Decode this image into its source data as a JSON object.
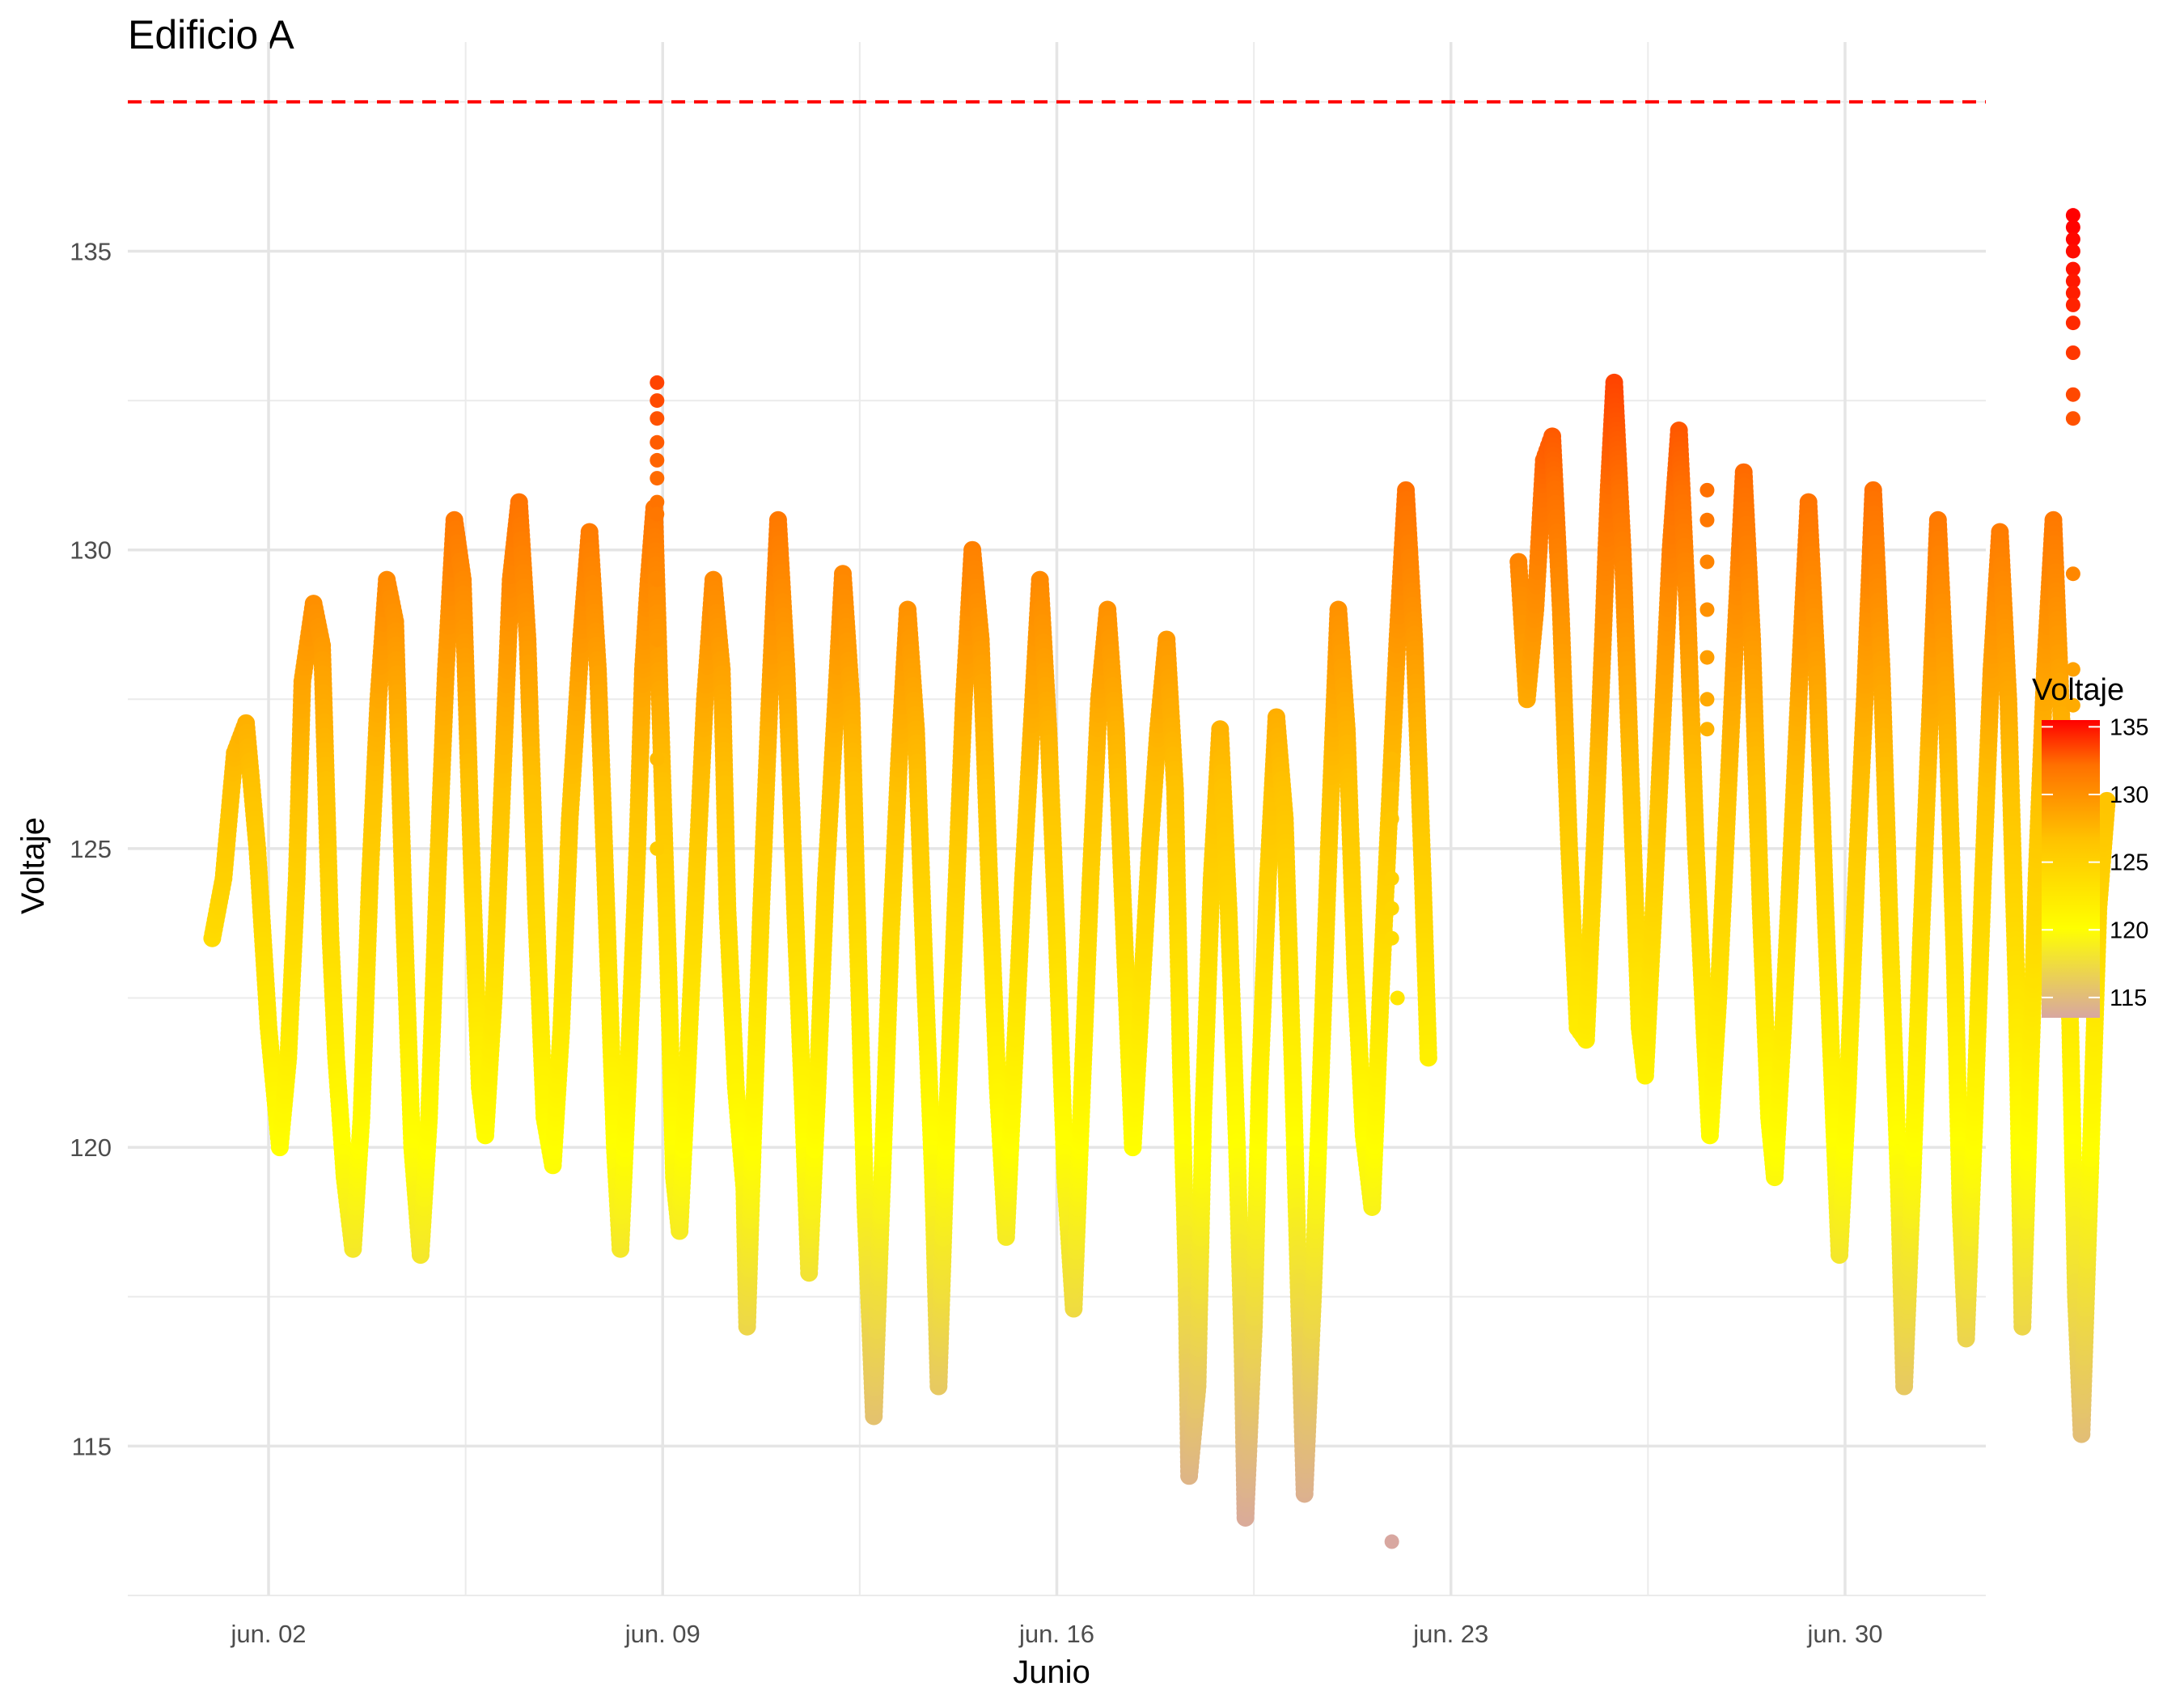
{
  "chart_data": {
    "type": "scatter",
    "title": "Edificio A",
    "xlabel": "Junio",
    "ylabel": "Voltaje",
    "x_ticks": [
      "jun. 02",
      "jun. 09",
      "jun. 16",
      "jun. 23",
      "jun. 30"
    ],
    "x_tick_days": [
      2,
      9,
      16,
      23,
      30
    ],
    "xlim_days": [
      -0.5,
      32.5
    ],
    "y_ticks": [
      115,
      120,
      125,
      130,
      135
    ],
    "ylim": [
      112.5,
      138.5
    ],
    "grid": true,
    "threshold": {
      "value": 137.5,
      "color": "#ff0000",
      "style": "dashed"
    },
    "legend": {
      "title": "Voltaje",
      "position": "right",
      "ticks": [
        115,
        120,
        125,
        130,
        135
      ],
      "range": [
        113.5,
        135.5
      ]
    },
    "colors": {
      "low": "#d8a7a0",
      "mid_low": "#ffff00",
      "mid": "#ffc200",
      "high": "#ff7000",
      "max": "#ff0000"
    },
    "series": [
      {
        "points": [
          [
            1.0,
            123.5
          ],
          [
            1.2,
            124.5
          ],
          [
            1.4,
            126.6
          ],
          [
            1.6,
            127.1
          ],
          [
            1.8,
            125.0
          ],
          [
            2.0,
            122.0
          ],
          [
            2.2,
            120.0
          ],
          [
            2.35,
            121.5
          ],
          [
            2.5,
            124.5
          ],
          [
            2.6,
            127.8
          ],
          [
            2.8,
            129.1
          ],
          [
            2.95,
            128.4
          ],
          [
            3.1,
            123.5
          ],
          [
            3.2,
            121.5
          ],
          [
            3.35,
            119.5
          ],
          [
            3.5,
            118.3
          ],
          [
            3.65,
            120.5
          ],
          [
            3.8,
            124.5
          ],
          [
            3.95,
            127.5
          ],
          [
            4.1,
            129.5
          ],
          [
            4.25,
            128.8
          ],
          [
            4.4,
            124.0
          ],
          [
            4.55,
            120.0
          ],
          [
            4.7,
            118.2
          ],
          [
            4.85,
            120.5
          ],
          [
            5.0,
            124.5
          ],
          [
            5.15,
            128.0
          ],
          [
            5.3,
            130.5
          ],
          [
            5.45,
            129.5
          ],
          [
            5.6,
            125.0
          ],
          [
            5.75,
            121.0
          ],
          [
            5.85,
            120.2
          ],
          [
            6.0,
            122.5
          ],
          [
            6.15,
            126.0
          ],
          [
            6.3,
            129.5
          ],
          [
            6.45,
            130.8
          ],
          [
            6.6,
            128.5
          ],
          [
            6.75,
            124.0
          ],
          [
            6.9,
            120.5
          ],
          [
            7.05,
            119.7
          ],
          [
            7.2,
            122.0
          ],
          [
            7.35,
            125.5
          ],
          [
            7.55,
            128.5
          ],
          [
            7.7,
            130.3
          ],
          [
            7.85,
            128.0
          ],
          [
            8.0,
            124.0
          ],
          [
            8.15,
            120.0
          ],
          [
            8.25,
            118.3
          ],
          [
            8.4,
            121.5
          ],
          [
            8.55,
            125.0
          ],
          [
            8.65,
            128.0
          ],
          [
            8.75,
            129.5
          ],
          [
            8.85,
            130.7
          ],
          [
            8.95,
            127.5
          ],
          [
            9.1,
            123.0
          ],
          [
            9.2,
            119.5
          ],
          [
            9.3,
            118.6
          ],
          [
            9.45,
            121.5
          ],
          [
            9.6,
            124.5
          ],
          [
            9.75,
            127.5
          ],
          [
            9.9,
            129.5
          ],
          [
            10.05,
            128.0
          ],
          [
            10.15,
            124.0
          ],
          [
            10.3,
            121.0
          ],
          [
            10.45,
            119.3
          ],
          [
            10.5,
            117.0
          ],
          [
            10.6,
            120.0
          ],
          [
            10.75,
            124.0
          ],
          [
            10.9,
            127.5
          ],
          [
            11.05,
            130.5
          ],
          [
            11.2,
            128.0
          ],
          [
            11.35,
            124.0
          ],
          [
            11.5,
            120.5
          ],
          [
            11.6,
            117.9
          ],
          [
            11.75,
            121.0
          ],
          [
            11.9,
            124.5
          ],
          [
            12.05,
            127.0
          ],
          [
            12.2,
            129.6
          ],
          [
            12.35,
            127.5
          ],
          [
            12.45,
            124.0
          ],
          [
            12.6,
            119.0
          ],
          [
            12.75,
            115.5
          ],
          [
            12.9,
            119.5
          ],
          [
            13.05,
            123.5
          ],
          [
            13.2,
            126.5
          ],
          [
            13.35,
            129.0
          ],
          [
            13.5,
            127.0
          ],
          [
            13.65,
            123.0
          ],
          [
            13.8,
            119.5
          ],
          [
            13.9,
            116.0
          ],
          [
            14.05,
            120.5
          ],
          [
            14.2,
            124.0
          ],
          [
            14.35,
            127.5
          ],
          [
            14.5,
            130.0
          ],
          [
            14.65,
            128.5
          ],
          [
            14.8,
            124.5
          ],
          [
            14.95,
            121.0
          ],
          [
            15.1,
            118.5
          ],
          [
            15.25,
            121.5
          ],
          [
            15.4,
            124.5
          ],
          [
            15.55,
            127.0
          ],
          [
            15.7,
            129.5
          ],
          [
            15.85,
            127.0
          ],
          [
            16.0,
            123.5
          ],
          [
            16.15,
            119.5
          ],
          [
            16.3,
            117.3
          ],
          [
            16.45,
            121.0
          ],
          [
            16.6,
            124.5
          ],
          [
            16.75,
            127.5
          ],
          [
            16.9,
            129.0
          ],
          [
            17.05,
            127.0
          ],
          [
            17.2,
            123.5
          ],
          [
            17.35,
            120.0
          ],
          [
            17.5,
            122.5
          ],
          [
            17.65,
            125.0
          ],
          [
            17.8,
            127.0
          ],
          [
            17.95,
            128.5
          ],
          [
            18.1,
            126.0
          ],
          [
            18.2,
            121.5
          ],
          [
            18.3,
            118.0
          ],
          [
            18.35,
            114.5
          ],
          [
            18.5,
            116.0
          ],
          [
            18.6,
            120.5
          ],
          [
            18.75,
            124.5
          ],
          [
            18.9,
            127.0
          ],
          [
            19.05,
            124.0
          ],
          [
            19.2,
            120.0
          ],
          [
            19.3,
            116.5
          ],
          [
            19.35,
            113.8
          ],
          [
            19.5,
            117.0
          ],
          [
            19.6,
            121.0
          ],
          [
            19.75,
            124.5
          ],
          [
            19.9,
            127.2
          ],
          [
            20.05,
            125.5
          ],
          [
            20.2,
            121.0
          ],
          [
            20.3,
            117.5
          ],
          [
            20.4,
            114.2
          ],
          [
            20.55,
            117.5
          ],
          [
            20.7,
            121.5
          ],
          [
            20.85,
            125.5
          ],
          [
            21.0,
            129.0
          ],
          [
            21.15,
            127.0
          ],
          [
            21.3,
            123.0
          ],
          [
            21.45,
            120.2
          ],
          [
            21.6,
            119.0
          ],
          [
            21.75,
            122.5
          ],
          [
            21.9,
            125.5
          ],
          [
            22.05,
            128.5
          ],
          [
            22.2,
            131.0
          ],
          [
            22.35,
            128.5
          ],
          [
            22.5,
            124.5
          ],
          [
            22.6,
            121.5
          ],
          [
            24.2,
            129.8
          ],
          [
            24.35,
            127.5
          ],
          [
            24.5,
            129.0
          ],
          [
            24.65,
            131.5
          ],
          [
            24.8,
            131.9
          ],
          [
            24.95,
            129.0
          ],
          [
            25.1,
            125.0
          ],
          [
            25.25,
            122.0
          ],
          [
            25.4,
            121.8
          ],
          [
            25.55,
            125.0
          ],
          [
            25.7,
            128.5
          ],
          [
            25.8,
            131.0
          ],
          [
            25.9,
            132.8
          ],
          [
            26.05,
            130.0
          ],
          [
            26.2,
            126.0
          ],
          [
            26.35,
            122.0
          ],
          [
            26.45,
            121.2
          ],
          [
            26.6,
            124.0
          ],
          [
            26.75,
            127.0
          ],
          [
            26.9,
            130.0
          ],
          [
            27.05,
            132.0
          ],
          [
            27.2,
            129.0
          ],
          [
            27.35,
            125.0
          ],
          [
            27.5,
            122.0
          ],
          [
            27.6,
            120.2
          ],
          [
            27.75,
            122.5
          ],
          [
            27.9,
            125.5
          ],
          [
            28.05,
            128.5
          ],
          [
            28.2,
            131.3
          ],
          [
            28.35,
            128.5
          ],
          [
            28.5,
            124.0
          ],
          [
            28.65,
            120.5
          ],
          [
            28.75,
            119.5
          ],
          [
            28.9,
            122.0
          ],
          [
            29.05,
            125.0
          ],
          [
            29.2,
            128.0
          ],
          [
            29.35,
            130.8
          ],
          [
            29.5,
            128.0
          ],
          [
            29.65,
            124.0
          ],
          [
            29.8,
            120.5
          ],
          [
            29.9,
            118.2
          ],
          [
            30.05,
            121.0
          ],
          [
            30.2,
            124.5
          ],
          [
            30.35,
            127.5
          ],
          [
            30.5,
            131.0
          ],
          [
            30.65,
            128.0
          ],
          [
            30.8,
            123.5
          ],
          [
            30.95,
            119.5
          ],
          [
            31.05,
            116.0
          ],
          [
            31.2,
            119.5
          ],
          [
            31.35,
            123.5
          ],
          [
            31.5,
            127.0
          ],
          [
            31.65,
            130.5
          ],
          [
            31.8,
            127.5
          ],
          [
            31.95,
            123.0
          ],
          [
            32.05,
            119.0
          ],
          [
            32.15,
            116.8
          ],
          [
            32.3,
            120.5
          ],
          [
            32.45,
            124.5
          ],
          [
            32.6,
            128.0
          ],
          [
            32.75,
            130.3
          ],
          [
            32.9,
            127.5
          ],
          [
            33.05,
            122.5
          ],
          [
            33.15,
            117.0
          ],
          [
            33.25,
            120.0
          ],
          [
            33.4,
            124.5
          ],
          [
            33.55,
            128.0
          ],
          [
            33.7,
            130.5
          ],
          [
            33.85,
            127.0
          ],
          [
            34.0,
            122.0
          ],
          [
            34.1,
            117.5
          ],
          [
            34.2,
            115.2
          ],
          [
            34.35,
            119.5
          ],
          [
            34.5,
            124.0
          ],
          [
            34.65,
            125.8
          ]
        ]
      },
      {
        "points": [
          [
            8.9,
            132.8
          ],
          [
            8.9,
            132.5
          ],
          [
            8.9,
            132.2
          ],
          [
            8.9,
            131.8
          ],
          [
            8.9,
            131.5
          ],
          [
            8.9,
            131.2
          ],
          [
            8.9,
            130.8
          ],
          [
            8.9,
            130.6
          ],
          [
            8.9,
            129.5
          ],
          [
            8.9,
            128.5
          ],
          [
            8.9,
            126.5
          ],
          [
            8.9,
            125.0
          ],
          [
            21.95,
            126.5
          ],
          [
            21.95,
            126.0
          ],
          [
            21.95,
            125.5
          ],
          [
            21.95,
            124.5
          ],
          [
            21.95,
            124.0
          ],
          [
            21.95,
            123.5
          ],
          [
            22.05,
            122.5
          ],
          [
            21.95,
            113.4
          ],
          [
            27.55,
            131.0
          ],
          [
            27.55,
            130.5
          ],
          [
            27.55,
            129.8
          ],
          [
            27.55,
            129.0
          ],
          [
            27.55,
            128.2
          ],
          [
            27.55,
            127.5
          ],
          [
            27.55,
            127.0
          ],
          [
            34.05,
            135.6
          ],
          [
            34.05,
            135.4
          ],
          [
            34.05,
            135.2
          ],
          [
            34.05,
            135.0
          ],
          [
            34.05,
            134.7
          ],
          [
            34.05,
            134.5
          ],
          [
            34.05,
            134.3
          ],
          [
            34.05,
            134.1
          ],
          [
            34.05,
            133.8
          ],
          [
            34.05,
            133.3
          ],
          [
            34.05,
            132.6
          ],
          [
            34.05,
            132.2
          ],
          [
            34.05,
            129.6
          ],
          [
            34.05,
            128.0
          ],
          [
            34.05,
            127.4
          ],
          [
            34.05,
            126.7
          ],
          [
            34.05,
            126.3
          ],
          [
            34.05,
            125.8
          ]
        ]
      }
    ]
  }
}
